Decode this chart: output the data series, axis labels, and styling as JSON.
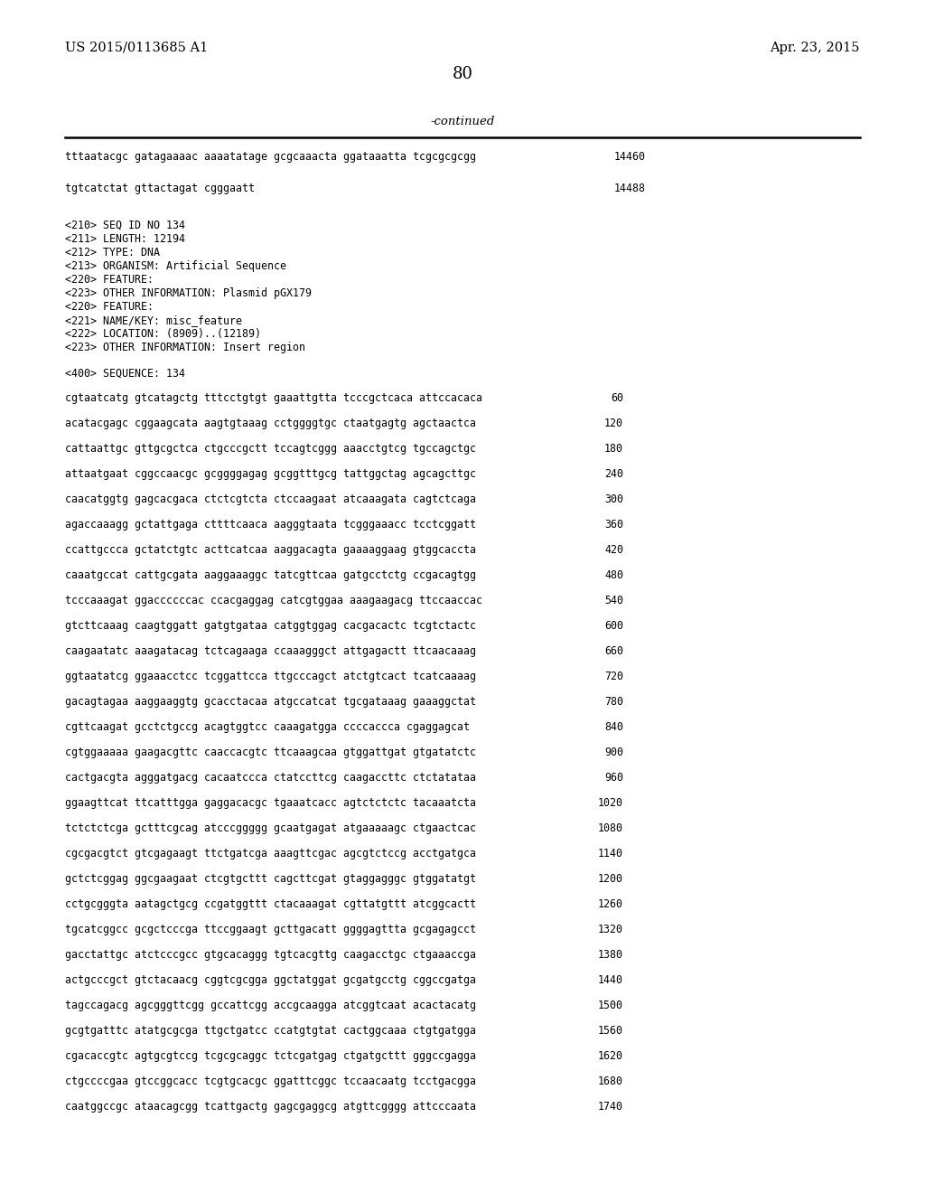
{
  "patent_number": "US 2015/0113685 A1",
  "date": "Apr. 23, 2015",
  "page_number": "80",
  "continued_text": "-continued",
  "background_color": "#ffffff",
  "text_color": "#000000",
  "header_seq_lines": [
    [
      "tttaatacgc gatagaaaac aaaatatage gcgcaaacta ggataaatta tcgcgcgcgg",
      "14460"
    ],
    [
      "",
      ""
    ],
    [
      "tgtcatctat gttactagat cgggaatt",
      "14488"
    ]
  ],
  "metadata_lines": [
    "<210> SEQ ID NO 134",
    "<211> LENGTH: 12194",
    "<212> TYPE: DNA",
    "<213> ORGANISM: Artificial Sequence",
    "<220> FEATURE:",
    "<223> OTHER INFORMATION: Plasmid pGX179",
    "<220> FEATURE:",
    "<221> NAME/KEY: misc_feature",
    "<222> LOCATION: (8909)..(12189)",
    "<223> OTHER INFORMATION: Insert region"
  ],
  "seq_label": "<400> SEQUENCE: 134",
  "sequence_lines": [
    [
      "cgtaatcatg gtcatagctg tttcctgtgt gaaattgtta tcccgctcaca attccacaca",
      "60"
    ],
    [
      "acatacgagc cggaagcata aagtgtaaag cctggggtgc ctaatgagtg agctaactca",
      "120"
    ],
    [
      "cattaattgc gttgcgctca ctgcccgctt tccagtcggg aaacctgtcg tgccagctgc",
      "180"
    ],
    [
      "attaatgaat cggccaacgc gcggggagag gcggtttgcg tattggctag agcagcttgc",
      "240"
    ],
    [
      "caacatggtg gagcacgaca ctctcgtcta ctccaagaat atcaaagata cagtctcaga",
      "300"
    ],
    [
      "agaccaaagg gctattgaga cttttcaaca aagggtaata tcgggaaacc tcctcggatt",
      "360"
    ],
    [
      "ccattgccca gctatctgtc acttcatcaa aaggacagta gaaaaggaag gtggcaccta",
      "420"
    ],
    [
      "caaatgccat cattgcgata aaggaaaggc tatcgttcaa gatgcctctg ccgacagtgg",
      "480"
    ],
    [
      "tcccaaagat ggaccccccac ccacgaggag catcgtggaa aaagaagacg ttccaaccac",
      "540"
    ],
    [
      "gtcttcaaag caagtggatt gatgtgataa catggtggag cacgacactc tcgtctactc",
      "600"
    ],
    [
      "caagaatatc aaagatacag tctcagaaga ccaaagggct attgagactt ttcaacaaag",
      "660"
    ],
    [
      "ggtaatatcg ggaaacctcc tcggattcca ttgcccagct atctgtcact tcatcaaaag",
      "720"
    ],
    [
      "gacagtagaa aaggaaggtg gcacctacaa atgccatcat tgcgataaag gaaaggctat",
      "780"
    ],
    [
      "cgttcaagat gcctctgccg acagtggtcc caaagatgga ccccaccca cgaggagcat",
      "840"
    ],
    [
      "cgtggaaaaa gaagacgttc caaccacgtc ttcaaagcaa gtggattgat gtgatatctc",
      "900"
    ],
    [
      "cactgacgta agggatgacg cacaatccca ctatccttcg caagaccttc ctctatataa",
      "960"
    ],
    [
      "ggaagttcat ttcatttgga gaggacacgc tgaaatcacc agtctctctc tacaaatcta",
      "1020"
    ],
    [
      "tctctctcga gctttcgcag atcccggggg gcaatgagat atgaaaaagc ctgaactcac",
      "1080"
    ],
    [
      "cgcgacgtct gtcgagaagt ttctgatcga aaagttcgac agcgtctccg acctgatgca",
      "1140"
    ],
    [
      "gctctcggag ggcgaagaat ctcgtgcttt cagcttcgat gtaggagggc gtggatatgt",
      "1200"
    ],
    [
      "cctgcgggta aatagctgcg ccgatggttt ctacaaagat cgttatgttt atcggcactt",
      "1260"
    ],
    [
      "tgcatcggcc gcgctcccga ttccggaagt gcttgacatt ggggagttta gcgagagcct",
      "1320"
    ],
    [
      "gacctattgc atctcccgcc gtgcacaggg tgtcacgttg caagacctgc ctgaaaccga",
      "1380"
    ],
    [
      "actgcccgct gtctacaacg cggtcgcgga ggctatggat gcgatgcctg cggccgatga",
      "1440"
    ],
    [
      "tagccagacg agcgggttcgg gccattcgg accgcaagga atcggtcaat acactacatg",
      "1500"
    ],
    [
      "gcgtgatttc atatgcgcga ttgctgatcc ccatgtgtat cactggcaaa ctgtgatgga",
      "1560"
    ],
    [
      "cgacaccgtc agtgcgtccg tcgcgcaggc tctcgatgag ctgatgcttt gggccgagga",
      "1620"
    ],
    [
      "ctgccccgaa gtccggcacc tcgtgcacgc ggatttcggc tccaacaatg tcctgacgga",
      "1680"
    ],
    [
      "caatggccgc ataacagcgg tcattgactg gagcgaggcg atgttcgggg attcccaata",
      "1740"
    ]
  ]
}
